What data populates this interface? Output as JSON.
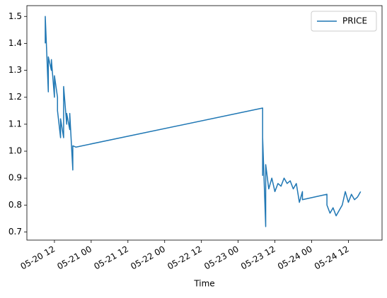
{
  "chart_data": {
    "type": "line",
    "x_label": "Time",
    "x": [
      "05-20 09",
      "05-20 09",
      "05-20 10",
      "05-20 10",
      "05-20 11",
      "05-20 11",
      "05-20 12",
      "05-20 12",
      "05-20 13",
      "05-20 13",
      "05-20 14",
      "05-20 14",
      "05-20 15",
      "05-20 15",
      "05-20 16",
      "05-20 16",
      "05-20 17",
      "05-20 17",
      "05-20 18",
      "05-20 18",
      "05-20 19",
      "05-23 08",
      "05-23 08",
      "05-23 08",
      "05-23 09",
      "05-23 09",
      "05-23 10",
      "05-23 11",
      "05-23 12",
      "05-23 13",
      "05-23 14",
      "05-23 15",
      "05-23 16",
      "05-23 17",
      "05-23 18",
      "05-23 19",
      "05-23 20",
      "05-23 21",
      "05-23 21",
      "05-24 05",
      "05-24 05",
      "05-24 06",
      "05-24 07",
      "05-24 08",
      "05-24 09",
      "05-24 10",
      "05-24 11",
      "05-24 12",
      "05-24 13",
      "05-24 14",
      "05-24 15",
      "05-24 16"
    ],
    "series": [
      {
        "name": "PRICE",
        "color": "#1f77b4",
        "values": [
          1.4,
          1.5,
          1.22,
          1.35,
          1.3,
          1.34,
          1.2,
          1.28,
          1.2,
          1.15,
          1.05,
          1.12,
          1.05,
          1.24,
          1.1,
          1.14,
          1.08,
          1.14,
          0.93,
          1.02,
          1.015,
          1.16,
          0.91,
          1.05,
          0.72,
          0.95,
          0.86,
          0.9,
          0.85,
          0.88,
          0.87,
          0.9,
          0.88,
          0.89,
          0.86,
          0.88,
          0.81,
          0.85,
          0.82,
          0.84,
          0.8,
          0.77,
          0.79,
          0.76,
          0.78,
          0.8,
          0.85,
          0.81,
          0.84,
          0.82,
          0.83,
          0.85
        ]
      }
    ],
    "xlim": [
      "05-20 03",
      "05-24 23"
    ],
    "xticks": [
      "05-20 12",
      "05-21 00",
      "05-21 12",
      "05-22 00",
      "05-22 12",
      "05-23 00",
      "05-23 12",
      "05-24 00",
      "05-24 12"
    ],
    "ylim": [
      0.67,
      1.54
    ],
    "yticks": [
      0.7,
      0.8,
      0.9,
      {
        "value": 1,
        "label": "1.0"
      },
      1.1,
      1.2,
      1.3,
      1.4,
      1.5
    ],
    "legend": "upper right"
  }
}
